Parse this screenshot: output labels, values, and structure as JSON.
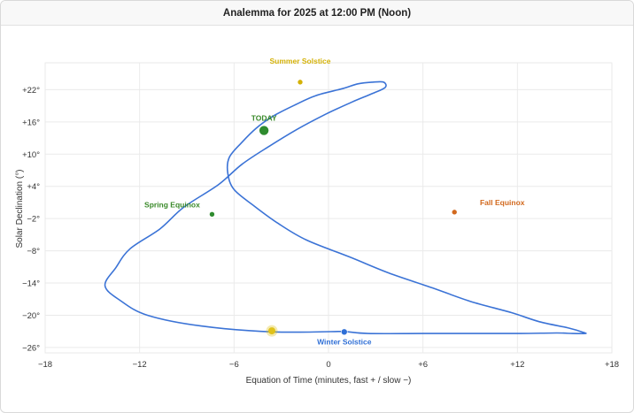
{
  "window": {
    "title": "Analemma for 2025 at 12:00 PM (Noon)"
  },
  "colors": {
    "curve": "#3b73d6",
    "grid": "#eaeaea",
    "summer": "#d4b106",
    "today": "#2e8b2e",
    "spring": "#2e8b2e",
    "fall": "#d2691e",
    "winter": "#2f6fd6",
    "today_text": "#3a8a2a",
    "spring_text": "#3a8a2a",
    "summer_text": "#d4b106",
    "fall_text": "#d2691e",
    "winter_text": "#2f6fd6",
    "current": "#e0c21a"
  },
  "chart_data": {
    "type": "line",
    "title": "Analemma for 2025 at 12:00 PM (Noon)",
    "xlabel": "Equation of Time (minutes, fast + / slow −)",
    "ylabel": "Solar Declination (°)",
    "xlim": [
      -18,
      18
    ],
    "ylim": [
      -27,
      27
    ],
    "x_ticks": [
      -18,
      -12,
      -6,
      0,
      6,
      12,
      18
    ],
    "x_tick_labels": [
      "−18",
      "−12",
      "−6",
      "0",
      "+6",
      "+12",
      "+18"
    ],
    "y_ticks": [
      22,
      16,
      10,
      4,
      -2,
      -8,
      -14,
      -20,
      -26
    ],
    "y_tick_labels": [
      "+22°",
      "+16°",
      "+10°",
      "+4°",
      "−2°",
      "−8°",
      "−14°",
      "−20°",
      "−26°"
    ],
    "grid": true,
    "series": [
      {
        "x": [
          1.0,
          -3.5,
          -8.1,
          -11.5,
          -13.2,
          -14.2,
          -13.5,
          -12.6,
          -10.7,
          -9.2,
          -7.0,
          -5.5,
          -3.8,
          -2.0,
          -0.2,
          1.5,
          2.8,
          3.6,
          3.5,
          2.8,
          1.9,
          0.9,
          -0.8,
          -2.1,
          -3.5,
          -4.6,
          -5.5,
          -6.3,
          -6.4,
          -6.0,
          -4.7,
          -3.2,
          -1.4,
          1.3,
          3.8,
          6.6,
          9.0,
          11.6,
          13.4,
          15.3,
          16.2,
          16.3,
          15.5,
          14.5,
          12.2,
          9.3,
          6.0,
          2.5,
          1.0
        ],
        "y": [
          -23.0,
          -23.1,
          -22.0,
          -20.0,
          -17.3,
          -14.5,
          -11.1,
          -7.6,
          -3.9,
          0.1,
          4.3,
          8.1,
          11.4,
          14.6,
          17.4,
          19.7,
          21.3,
          22.4,
          23.4,
          23.4,
          23.1,
          22.2,
          20.9,
          19.2,
          17.1,
          14.8,
          12.2,
          9.4,
          6.5,
          3.4,
          0.3,
          -2.9,
          -6.0,
          -9.1,
          -12.1,
          -14.9,
          -17.4,
          -19.5,
          -21.2,
          -22.4,
          -23.2,
          -23.4,
          -23.4,
          -23.3,
          -23.4,
          -23.4,
          -23.4,
          -23.4,
          -23.0
        ]
      }
    ],
    "markers": [
      {
        "label": "Summer Solstice",
        "x": -1.8,
        "y": 23.4
      },
      {
        "label": "TODAY",
        "x": -4.1,
        "y": 14.4
      },
      {
        "label": "Spring Equinox",
        "x": -7.4,
        "y": -1.2
      },
      {
        "label": "Fall Equinox",
        "x": 8.0,
        "y": -0.8
      },
      {
        "label": "Winter Solstice",
        "x": 1.0,
        "y": -23.1
      },
      {
        "label": "",
        "x": -3.6,
        "y": -22.9
      }
    ]
  }
}
